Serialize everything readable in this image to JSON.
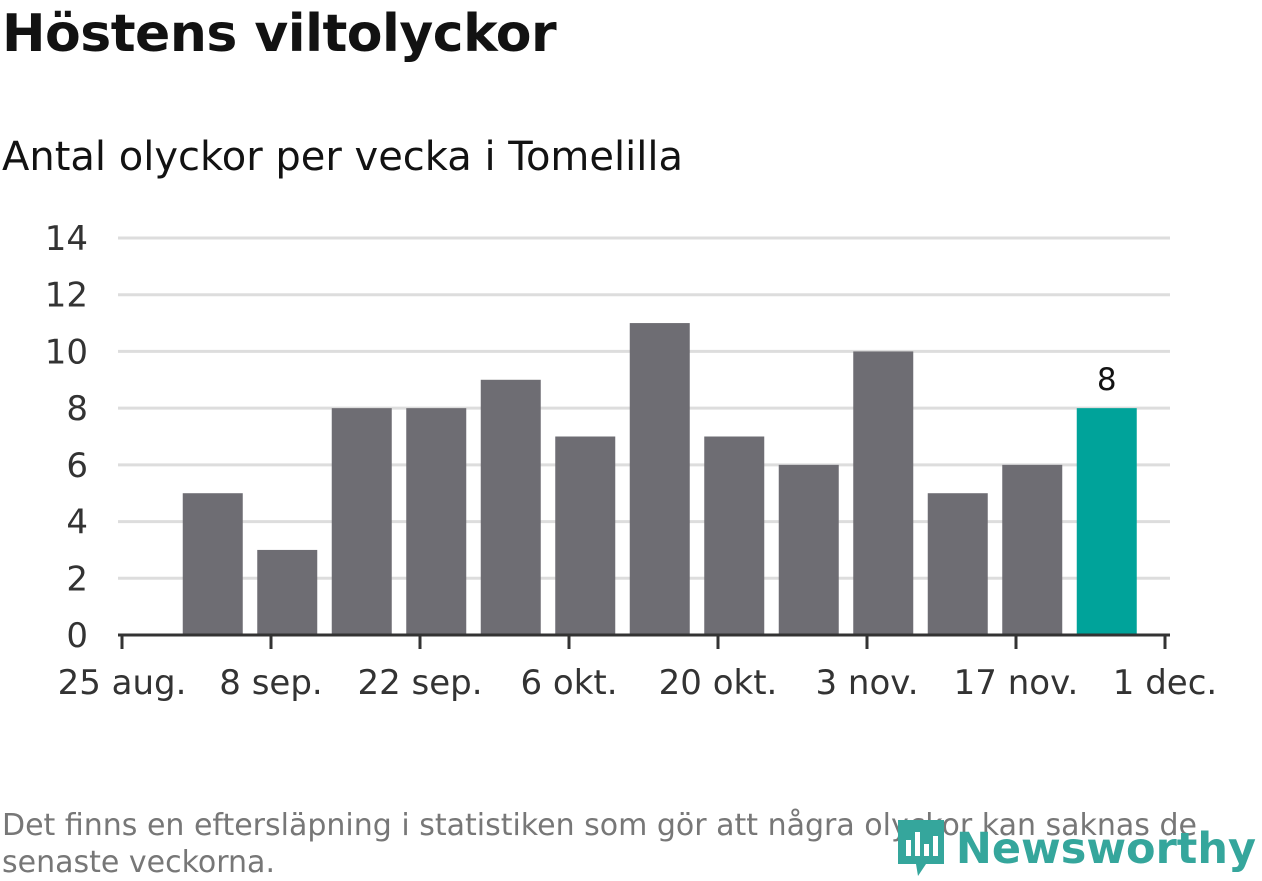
{
  "chart_data": {
    "type": "bar",
    "title": "Höstens viltolyckor",
    "subtitle": "Antal olyckor per vecka i Tomelilla",
    "x": [
      "2024-09-01",
      "2024-09-08",
      "2024-09-15",
      "2024-09-22",
      "2024-09-29",
      "2024-10-06",
      "2024-10-13",
      "2024-10-20",
      "2024-10-27",
      "2024-11-03",
      "2024-11-10",
      "2024-11-17",
      "2024-11-24"
    ],
    "values": [
      5,
      3,
      8,
      8,
      9,
      7,
      11,
      7,
      6,
      10,
      5,
      6,
      8
    ],
    "x_ticks": [
      {
        "date": "2024-08-25",
        "label": "25 aug."
      },
      {
        "date": "2024-09-08",
        "label": "8 sep."
      },
      {
        "date": "2024-09-22",
        "label": "22 sep."
      },
      {
        "date": "2024-10-06",
        "label": "6 okt."
      },
      {
        "date": "2024-10-20",
        "label": "20 okt."
      },
      {
        "date": "2024-11-03",
        "label": "3 nov."
      },
      {
        "date": "2024-11-17",
        "label": "17 nov."
      },
      {
        "date": "2024-12-01",
        "label": "1 dec."
      }
    ],
    "xlim": [
      "2024-08-25",
      "2024-12-01"
    ],
    "ylim": [
      0,
      14
    ],
    "y_ticks": [
      0,
      2,
      4,
      6,
      8,
      10,
      12,
      14
    ],
    "highlight_index": 12,
    "highlight_label": "8",
    "grid": true,
    "colors": {
      "bar": "#6e6d73",
      "highlight": "#00a39a",
      "grid": "#dddddd",
      "axis": "#333333"
    }
  },
  "note": "Det finns en eftersläpning i statistiken som gör att några olyckor kan saknas de senaste veckorna.",
  "logo": {
    "text": "Newsworthy",
    "color": "#35a69c",
    "icon": "chart-logo-icon"
  }
}
